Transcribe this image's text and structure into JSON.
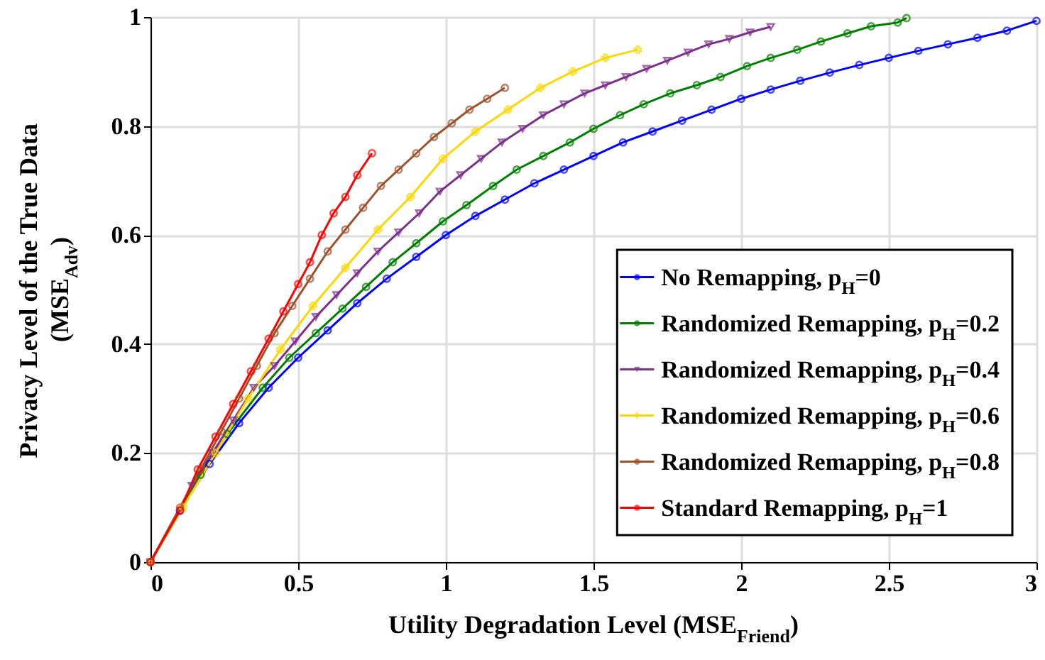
{
  "chart_data": {
    "type": "line",
    "xlabel": "Utility Degradation Level (MSE$_{Friend}$)",
    "ylabel": "Privacy Level of the True Data (MSE$_{Adv}$)",
    "xlim": [
      0,
      3
    ],
    "ylim": [
      0,
      1
    ],
    "xticks": [
      0,
      0.5,
      1,
      1.5,
      2,
      2.5,
      3
    ],
    "yticks": [
      0,
      0.2,
      0.4,
      0.6,
      0.8,
      1
    ],
    "grid": true,
    "legend": "bottom right",
    "line_style": "solid",
    "series": [
      {
        "name": "No  Remapping, p$_{H}$=0",
        "color": "#0000ff",
        "marker": "circle",
        "x": [
          0,
          0.1,
          0.2,
          0.3,
          0.4,
          0.5,
          0.6,
          0.7,
          0.8,
          0.9,
          1.0,
          1.1,
          1.2,
          1.3,
          1.4,
          1.5,
          1.6,
          1.7,
          1.8,
          1.9,
          2.0,
          2.1,
          2.2,
          2.3,
          2.4,
          2.5,
          2.6,
          2.7,
          2.8,
          2.9,
          3.0
        ],
        "values": [
          0,
          0.094,
          0.18,
          0.255,
          0.32,
          0.375,
          0.425,
          0.475,
          0.52,
          0.56,
          0.6,
          0.635,
          0.665,
          0.695,
          0.72,
          0.745,
          0.77,
          0.79,
          0.81,
          0.83,
          0.85,
          0.867,
          0.883,
          0.898,
          0.912,
          0.925,
          0.938,
          0.95,
          0.962,
          0.975,
          0.993
        ]
      },
      {
        "name": "Randomized  Remapping, p$_{H}$=0.2",
        "color": "#008000",
        "marker": "circle",
        "x": [
          0,
          0.17,
          0.26,
          0.38,
          0.47,
          0.56,
          0.65,
          0.73,
          0.82,
          0.9,
          0.99,
          1.07,
          1.16,
          1.24,
          1.33,
          1.42,
          1.5,
          1.59,
          1.67,
          1.76,
          1.85,
          1.93,
          2.02,
          2.1,
          2.19,
          2.27,
          2.36,
          2.44,
          2.53,
          2.56
        ],
        "values": [
          0,
          0.16,
          0.235,
          0.32,
          0.375,
          0.42,
          0.465,
          0.505,
          0.55,
          0.585,
          0.625,
          0.655,
          0.69,
          0.72,
          0.745,
          0.77,
          0.795,
          0.82,
          0.84,
          0.86,
          0.875,
          0.89,
          0.91,
          0.925,
          0.94,
          0.955,
          0.97,
          0.983,
          0.99,
          0.998
        ]
      },
      {
        "name": "Randomized  Remapping, p$_{H}$=0.4",
        "color": "#7e2f8e",
        "marker": "triangle",
        "x": [
          0,
          0.14,
          0.21,
          0.28,
          0.35,
          0.42,
          0.49,
          0.56,
          0.63,
          0.7,
          0.77,
          0.84,
          0.91,
          0.98,
          1.05,
          1.12,
          1.19,
          1.26,
          1.33,
          1.4,
          1.47,
          1.54,
          1.61,
          1.68,
          1.75,
          1.82,
          1.89,
          1.96,
          2.03,
          2.1
        ],
        "values": [
          0,
          0.14,
          0.2,
          0.26,
          0.32,
          0.36,
          0.405,
          0.45,
          0.49,
          0.53,
          0.57,
          0.605,
          0.64,
          0.68,
          0.71,
          0.74,
          0.77,
          0.795,
          0.82,
          0.84,
          0.86,
          0.875,
          0.89,
          0.905,
          0.92,
          0.935,
          0.95,
          0.96,
          0.972,
          0.982
        ]
      },
      {
        "name": "Randomized  Remapping, p$_{H}$=0.6",
        "color": "#ffd700",
        "marker": "cross",
        "x": [
          0,
          0.11,
          0.22,
          0.33,
          0.44,
          0.55,
          0.66,
          0.77,
          0.88,
          0.99,
          1.1,
          1.21,
          1.32,
          1.43,
          1.54,
          1.65
        ],
        "values": [
          0,
          0.1,
          0.2,
          0.3,
          0.39,
          0.47,
          0.54,
          0.61,
          0.67,
          0.74,
          0.79,
          0.83,
          0.87,
          0.9,
          0.925,
          0.94
        ]
      },
      {
        "name": "Randomized  Remapping, p$_{H}$=0.8",
        "color": "#a0522d",
        "marker": "circle",
        "x": [
          0,
          0.1,
          0.17,
          0.24,
          0.3,
          0.36,
          0.42,
          0.48,
          0.54,
          0.6,
          0.66,
          0.72,
          0.78,
          0.84,
          0.9,
          0.96,
          1.02,
          1.08,
          1.14,
          1.2
        ],
        "values": [
          0,
          0.1,
          0.17,
          0.24,
          0.3,
          0.36,
          0.42,
          0.47,
          0.52,
          0.57,
          0.61,
          0.65,
          0.69,
          0.72,
          0.75,
          0.78,
          0.805,
          0.83,
          0.85,
          0.87
        ]
      },
      {
        "name": "Standard  Remapping, p$_{H}$=1",
        "color": "#ff0000",
        "marker": "circle",
        "x": [
          0,
          0.1,
          0.16,
          0.22,
          0.28,
          0.34,
          0.4,
          0.45,
          0.5,
          0.54,
          0.58,
          0.62,
          0.66,
          0.7,
          0.75
        ],
        "values": [
          0,
          0.095,
          0.17,
          0.23,
          0.29,
          0.35,
          0.41,
          0.46,
          0.51,
          0.55,
          0.6,
          0.64,
          0.67,
          0.71,
          0.75
        ]
      }
    ]
  }
}
